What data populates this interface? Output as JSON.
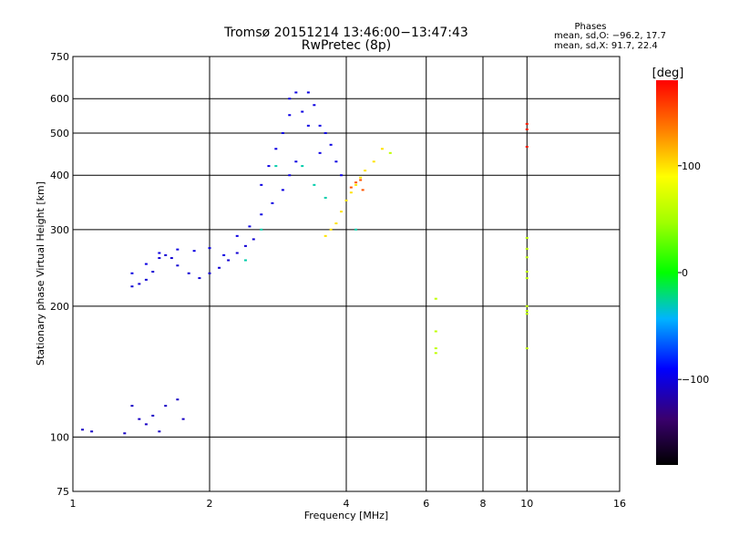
{
  "chart_data": {
    "type": "scatter",
    "title": "Tromsø 20151214 13:46:00−13:47:43",
    "subtitle": "RwPretec (8p)",
    "xlabel": "Frequency [MHz]",
    "ylabel": "Stationary phase Virtual Height [km]",
    "x_scale": "log",
    "y_scale": "log",
    "xlim": [
      1,
      16
    ],
    "ylim": [
      75,
      750
    ],
    "x_ticks": [
      1,
      2,
      4,
      6,
      8,
      10,
      16
    ],
    "x_tick_labels": [
      "1",
      "2",
      "4",
      "6",
      "8",
      "10",
      "16"
    ],
    "y_ticks": [
      75,
      100,
      200,
      300,
      400,
      500,
      600,
      750
    ],
    "y_tick_labels": [
      "75",
      "100",
      "200",
      "300",
      "400",
      "500",
      "600",
      "750"
    ],
    "grid": true,
    "phase_legend": {
      "title": "Phases",
      "line_o": "mean, sd,O: −96.2, 17.7",
      "line_x": "mean, sd,X:  91.7, 22.4"
    },
    "colorbar": {
      "label": "[deg]",
      "range": [
        -180,
        180
      ],
      "ticks": [
        100,
        0,
        -100
      ],
      "tick_labels": [
        "100",
        "0",
        "−100"
      ]
    },
    "clusters": [
      {
        "name": "O-trace-low",
        "phase": -105,
        "points": [
          [
            1.35,
            222
          ],
          [
            1.4,
            225
          ],
          [
            1.45,
            230
          ],
          [
            1.5,
            240
          ],
          [
            1.55,
            258
          ],
          [
            1.6,
            262
          ],
          [
            1.65,
            258
          ],
          [
            1.7,
            248
          ],
          [
            1.8,
            238
          ],
          [
            1.9,
            232
          ],
          [
            2.0,
            238
          ],
          [
            2.1,
            245
          ],
          [
            2.2,
            255
          ],
          [
            2.3,
            265
          ],
          [
            2.4,
            275
          ],
          [
            2.5,
            285
          ]
        ]
      },
      {
        "name": "O-trace-band",
        "phase": -100,
        "points": [
          [
            1.35,
            238
          ],
          [
            1.45,
            250
          ],
          [
            1.55,
            265
          ],
          [
            1.7,
            270
          ],
          [
            1.85,
            268
          ],
          [
            2.0,
            272
          ],
          [
            2.15,
            262
          ],
          [
            2.3,
            290
          ],
          [
            2.45,
            305
          ],
          [
            2.6,
            325
          ],
          [
            2.75,
            345
          ],
          [
            2.9,
            370
          ],
          [
            3.0,
            400
          ],
          [
            3.1,
            430
          ]
        ]
      },
      {
        "name": "O-trace-upper",
        "phase": -100,
        "points": [
          [
            2.6,
            380
          ],
          [
            2.7,
            420
          ],
          [
            2.8,
            460
          ],
          [
            2.9,
            500
          ],
          [
            3.0,
            550
          ],
          [
            3.0,
            600
          ],
          [
            3.1,
            620
          ],
          [
            3.2,
            560
          ],
          [
            3.3,
            520
          ],
          [
            3.3,
            620
          ],
          [
            3.4,
            580
          ],
          [
            3.5,
            520
          ],
          [
            3.5,
            450
          ],
          [
            3.6,
            500
          ],
          [
            3.7,
            470
          ],
          [
            3.8,
            430
          ],
          [
            3.9,
            400
          ]
        ]
      },
      {
        "name": "X-trace",
        "phase": 100,
        "points": [
          [
            3.6,
            290
          ],
          [
            3.7,
            300
          ],
          [
            3.8,
            310
          ],
          [
            3.9,
            330
          ],
          [
            4.0,
            350
          ],
          [
            4.1,
            365
          ],
          [
            4.2,
            380
          ],
          [
            4.3,
            395
          ],
          [
            4.4,
            410
          ],
          [
            4.6,
            430
          ],
          [
            4.8,
            460
          ]
        ]
      },
      {
        "name": "X-trace-orange",
        "phase": 150,
        "points": [
          [
            4.1,
            375
          ],
          [
            4.2,
            385
          ],
          [
            4.3,
            390
          ],
          [
            4.35,
            370
          ]
        ]
      },
      {
        "name": "E-region",
        "phase": -110,
        "points": [
          [
            1.05,
            104
          ],
          [
            1.1,
            103
          ],
          [
            1.3,
            102
          ],
          [
            1.35,
            118
          ],
          [
            1.4,
            110
          ],
          [
            1.45,
            107
          ],
          [
            1.5,
            112
          ],
          [
            1.55,
            103
          ],
          [
            1.6,
            118
          ],
          [
            1.7,
            122
          ],
          [
            1.75,
            110
          ]
        ]
      },
      {
        "name": "scatter-teal",
        "phase": -30,
        "points": [
          [
            2.4,
            255
          ],
          [
            2.6,
            300
          ],
          [
            2.8,
            420
          ],
          [
            3.2,
            420
          ],
          [
            3.4,
            380
          ],
          [
            3.6,
            355
          ],
          [
            4.2,
            300
          ]
        ]
      },
      {
        "name": "sparse-high-freq",
        "phase": 60,
        "points": [
          [
            5.0,
            450
          ],
          [
            6.3,
            208
          ],
          [
            6.3,
            175
          ],
          [
            6.3,
            160
          ],
          [
            6.3,
            156
          ],
          [
            10.0,
            287
          ],
          [
            10.0,
            271
          ],
          [
            10.0,
            259
          ],
          [
            10.0,
            240
          ],
          [
            10.0,
            232
          ],
          [
            10.0,
            200
          ],
          [
            10.0,
            195
          ],
          [
            10.0,
            192
          ],
          [
            10.0,
            160
          ]
        ]
      },
      {
        "name": "sparse-red",
        "phase": 170,
        "points": [
          [
            10.0,
            525
          ],
          [
            10.0,
            510
          ],
          [
            10.0,
            465
          ]
        ]
      }
    ]
  }
}
